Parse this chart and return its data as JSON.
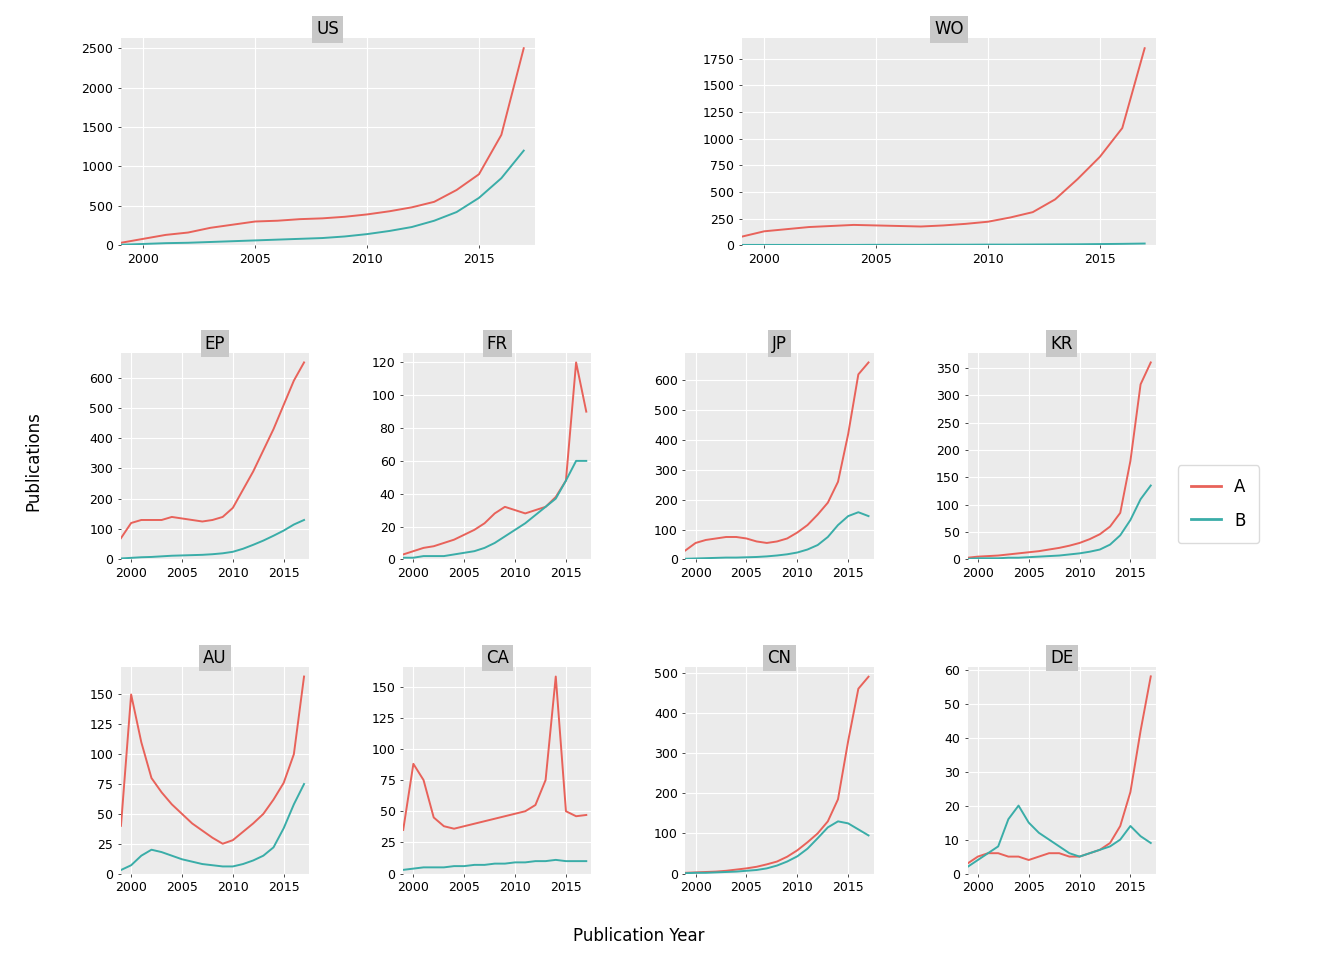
{
  "years": [
    1999,
    2000,
    2001,
    2002,
    2003,
    2004,
    2005,
    2006,
    2007,
    2008,
    2009,
    2010,
    2011,
    2012,
    2013,
    2014,
    2015,
    2016,
    2017
  ],
  "panels": {
    "US": {
      "A": [
        30,
        80,
        130,
        160,
        220,
        260,
        300,
        310,
        330,
        340,
        360,
        390,
        430,
        480,
        550,
        700,
        900,
        1400,
        2500
      ],
      "B": [
        5,
        15,
        25,
        30,
        40,
        50,
        60,
        70,
        80,
        90,
        110,
        140,
        180,
        230,
        310,
        420,
        600,
        850,
        1200
      ]
    },
    "WO": {
      "A": [
        80,
        130,
        150,
        170,
        180,
        190,
        185,
        180,
        175,
        185,
        200,
        220,
        260,
        310,
        430,
        620,
        830,
        1100,
        1850
      ],
      "B": [
        2,
        2,
        2,
        2,
        2,
        2,
        3,
        3,
        3,
        4,
        4,
        5,
        5,
        6,
        7,
        8,
        10,
        12,
        15
      ]
    },
    "EP": {
      "A": [
        70,
        120,
        130,
        130,
        130,
        140,
        135,
        130,
        125,
        130,
        140,
        170,
        230,
        290,
        360,
        430,
        510,
        590,
        650
      ],
      "B": [
        3,
        5,
        7,
        8,
        10,
        12,
        13,
        14,
        15,
        17,
        20,
        25,
        35,
        48,
        62,
        78,
        95,
        115,
        130
      ]
    },
    "FR": {
      "A": [
        3,
        5,
        7,
        8,
        10,
        12,
        15,
        18,
        22,
        28,
        32,
        30,
        28,
        30,
        32,
        38,
        48,
        120,
        90
      ],
      "B": [
        1,
        1,
        2,
        2,
        2,
        3,
        4,
        5,
        7,
        10,
        14,
        18,
        22,
        27,
        32,
        37,
        48,
        60,
        60
      ]
    },
    "JP": {
      "A": [
        30,
        55,
        65,
        70,
        75,
        75,
        70,
        60,
        55,
        60,
        70,
        90,
        115,
        150,
        190,
        260,
        420,
        620,
        660
      ],
      "B": [
        2,
        3,
        4,
        5,
        6,
        6,
        7,
        8,
        10,
        13,
        17,
        23,
        33,
        48,
        75,
        115,
        145,
        158,
        145
      ]
    },
    "KR": {
      "A": [
        3,
        5,
        6,
        7,
        9,
        11,
        13,
        15,
        18,
        21,
        25,
        30,
        37,
        46,
        60,
        85,
        180,
        320,
        360
      ],
      "B": [
        1,
        2,
        2,
        2,
        3,
        3,
        4,
        5,
        6,
        7,
        9,
        11,
        14,
        18,
        27,
        44,
        72,
        110,
        135
      ]
    },
    "AU": {
      "A": [
        40,
        150,
        110,
        80,
        68,
        58,
        50,
        42,
        36,
        30,
        25,
        28,
        35,
        42,
        50,
        62,
        76,
        100,
        165
      ],
      "B": [
        3,
        7,
        15,
        20,
        18,
        15,
        12,
        10,
        8,
        7,
        6,
        6,
        8,
        11,
        15,
        22,
        38,
        58,
        75
      ]
    },
    "CA": {
      "A": [
        35,
        88,
        75,
        45,
        38,
        36,
        38,
        40,
        42,
        44,
        46,
        48,
        50,
        55,
        75,
        158,
        50,
        46,
        47
      ],
      "B": [
        3,
        4,
        5,
        5,
        5,
        6,
        6,
        7,
        7,
        8,
        8,
        9,
        9,
        10,
        10,
        11,
        10,
        10,
        10
      ]
    },
    "CN": {
      "A": [
        2,
        3,
        4,
        5,
        7,
        10,
        13,
        17,
        23,
        30,
        42,
        58,
        78,
        100,
        130,
        185,
        330,
        460,
        490
      ],
      "B": [
        1,
        2,
        2,
        3,
        4,
        5,
        7,
        9,
        13,
        20,
        30,
        43,
        62,
        88,
        115,
        130,
        125,
        110,
        95
      ]
    },
    "DE": {
      "A": [
        3,
        5,
        6,
        6,
        5,
        5,
        4,
        5,
        6,
        6,
        5,
        5,
        6,
        7,
        9,
        14,
        24,
        42,
        58
      ],
      "B": [
        2,
        4,
        6,
        8,
        16,
        20,
        15,
        12,
        10,
        8,
        6,
        5,
        6,
        7,
        8,
        10,
        14,
        11,
        9
      ]
    }
  },
  "color_A": "#E8625A",
  "color_B": "#3AADA8",
  "xlabel": "Publication Year",
  "ylabel": "Publications",
  "background_plot": "#EBEBEB",
  "background_fig": "#FFFFFF",
  "grid_color": "#FFFFFF",
  "panel_header_bg": "#C8C8C8",
  "tick_label_size": 9,
  "axis_label_size": 12,
  "panel_title_size": 12
}
